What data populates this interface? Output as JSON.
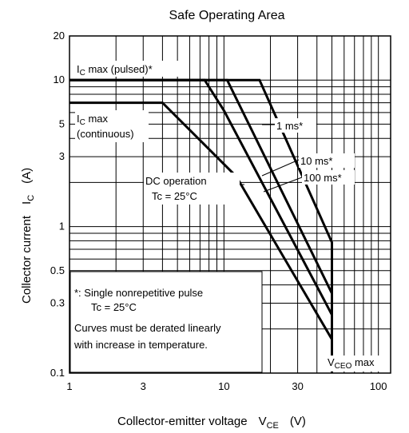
{
  "chart_data": {
    "type": "line",
    "title": "Safe Operating Area",
    "xlabel": {
      "main": "Collector-emitter voltage",
      "symbol": "V",
      "sub": "CE",
      "unit": "(V)"
    },
    "ylabel": {
      "main": "Collector current",
      "symbol": "I",
      "sub": "C",
      "unit": "(A)"
    },
    "x_scale": "log",
    "y_scale": "log",
    "xlim": [
      1,
      120
    ],
    "ylim": [
      0.1,
      20
    ],
    "grid": true,
    "x_ticks": [
      {
        "value": 1,
        "label": "1"
      },
      {
        "value": 3,
        "label": "3"
      },
      {
        "value": 10,
        "label": "10"
      },
      {
        "value": 30,
        "label": "30"
      },
      {
        "value": 100,
        "label": "100"
      }
    ],
    "y_ticks": [
      {
        "value": 0.1,
        "label": "0.1"
      },
      {
        "value": 0.3,
        "label": "0.3"
      },
      {
        "value": 0.5,
        "label": "0.5"
      },
      {
        "value": 1,
        "label": "1"
      },
      {
        "value": 3,
        "label": "3"
      },
      {
        "value": 5,
        "label": "5"
      },
      {
        "value": 10,
        "label": "10"
      },
      {
        "value": 20,
        "label": "20"
      }
    ],
    "series": [
      {
        "name": "1 ms*",
        "x": [
          1,
          17,
          50,
          50
        ],
        "y": [
          10,
          10,
          0.78,
          0.1
        ]
      },
      {
        "name": "10 ms*",
        "x": [
          1,
          10.5,
          50,
          50
        ],
        "y": [
          10,
          10,
          0.35,
          0.1
        ]
      },
      {
        "name": "100 ms*",
        "x": [
          1,
          7.5,
          10,
          50,
          50
        ],
        "y": [
          10,
          10,
          6.2,
          0.25,
          0.1
        ]
      },
      {
        "name": "DC operation",
        "x": [
          1,
          4,
          12,
          50,
          50
        ],
        "y": [
          7,
          7,
          2.2,
          0.17,
          0.1
        ]
      }
    ],
    "annotations": {
      "ic_max_pulsed": {
        "symbol": "I",
        "sub": "C",
        "text": " max (pulsed)*"
      },
      "ic_max_cont_line1": {
        "symbol": "I",
        "sub": "C",
        "text": " max"
      },
      "ic_max_cont_line2": "(continuous)",
      "one_ms": "1 ms*",
      "ten_ms": "10 ms*",
      "hundred_ms": "100 ms*",
      "dc_line1": "DC operation",
      "dc_line2": "Tc = 25°C",
      "vceo": {
        "symbol": "V",
        "sub": "CEO",
        "text": " max"
      },
      "note_line1": "*:  Single nonrepetitive pulse",
      "note_line2": "Tc = 25°C",
      "note_line3": "Curves must be derated linearly",
      "note_line4": "with increase in temperature."
    }
  }
}
